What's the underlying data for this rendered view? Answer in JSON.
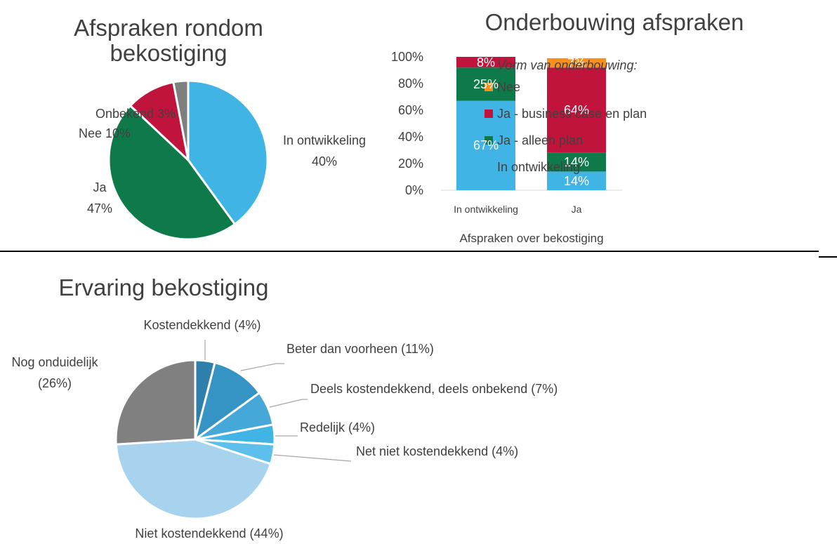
{
  "chart_data": [
    {
      "type": "pie",
      "title": "Afspraken rondom bekostiging",
      "categories": [
        "In ontwikkeling",
        "Ja",
        "Nee",
        "Onbekend"
      ],
      "values": [
        40,
        47,
        10,
        3
      ],
      "value_labels": [
        "40%",
        "47%",
        "10%",
        "3%"
      ],
      "colors": [
        "#41b4e6",
        "#0e7a4a",
        "#c0143c",
        "#7f7f7f"
      ]
    },
    {
      "type": "stacked_bar",
      "title": "Onderbouwing afspraken",
      "categories": [
        "In ontwikkeling",
        "Ja"
      ],
      "xlabel": "Afspraken over bekostiging",
      "legend_title": "Vorm van onderbouwing:",
      "series": [
        {
          "name": "In ontwikkeling",
          "color": "#41b4e6",
          "values": [
            67,
            14
          ],
          "value_labels": [
            "67%",
            "14%"
          ]
        },
        {
          "name": "Ja - alleen plan",
          "color": "#0e7a4a",
          "values": [
            25,
            14
          ],
          "value_labels": [
            "25%",
            "14%"
          ]
        },
        {
          "name": "Ja - business case en plan",
          "color": "#c0143c",
          "values": [
            8,
            64
          ],
          "value_labels": [
            "8%",
            "64%"
          ]
        },
        {
          "name": "Nee",
          "color": "#f7901e",
          "values": [
            0,
            7
          ],
          "value_labels": [
            null,
            "7%"
          ]
        }
      ],
      "ylim": [
        0,
        100
      ],
      "yticks": [
        {
          "value": 0,
          "label": "0%"
        },
        {
          "value": 20,
          "label": "20%"
        },
        {
          "value": 40,
          "label": "40%"
        },
        {
          "value": 60,
          "label": "60%"
        },
        {
          "value": 80,
          "label": "80%"
        },
        {
          "value": 100,
          "label": "100%"
        }
      ],
      "legend": "right"
    },
    {
      "type": "pie",
      "title": "Ervaring bekostiging",
      "categories": [
        "Kostendekkend",
        "Beter dan voorheen",
        "Deels kostendekkend, deels onbekend",
        "Redelijk",
        "Net niet kostendekkend",
        "Niet kostendekkend",
        "Nog onduidelijk"
      ],
      "values": [
        4,
        11,
        7,
        4,
        4,
        44,
        26
      ],
      "value_labels": [
        "(4%)",
        "(11%)",
        "(7%)",
        "(4%)",
        "(4%)",
        "(44%)",
        "(26%)"
      ],
      "colors": [
        "#2e80aa",
        "#3594c4",
        "#45a8d8",
        "#41b4e6",
        "#5dc0ec",
        "#a8d3ef",
        "#808080"
      ]
    }
  ]
}
